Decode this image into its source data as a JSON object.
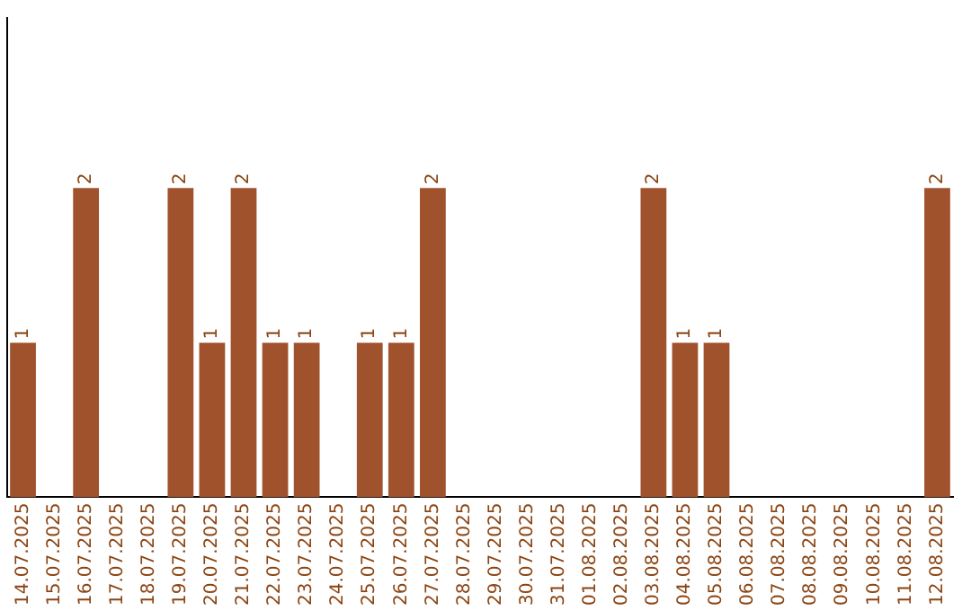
{
  "chart_data": {
    "type": "bar",
    "categories": [
      "14.07.2025",
      "15.07.2025",
      "16.07.2025",
      "17.07.2025",
      "18.07.2025",
      "19.07.2025",
      "20.07.2025",
      "21.07.2025",
      "22.07.2025",
      "23.07.2025",
      "24.07.2025",
      "25.07.2025",
      "26.07.2025",
      "27.07.2025",
      "28.07.2025",
      "29.07.2025",
      "30.07.2025",
      "31.07.2025",
      "01.08.2025",
      "02.08.2025",
      "03.08.2025",
      "04.08.2025",
      "05.08.2025",
      "06.08.2025",
      "07.08.2025",
      "08.08.2025",
      "09.08.2025",
      "10.08.2025",
      "11.08.2025",
      "12.08.2025"
    ],
    "values": [
      1,
      0,
      2,
      0,
      0,
      2,
      1,
      2,
      1,
      1,
      0,
      1,
      1,
      2,
      0,
      0,
      0,
      0,
      0,
      0,
      2,
      1,
      1,
      0,
      0,
      0,
      0,
      0,
      0,
      2
    ],
    "value_labels": [
      "1",
      null,
      "2",
      null,
      null,
      "2",
      "1",
      "2",
      "1",
      "1",
      null,
      "1",
      "1",
      "2",
      null,
      null,
      null,
      null,
      null,
      null,
      "2",
      "1",
      "1",
      null,
      null,
      null,
      null,
      null,
      null,
      "2"
    ],
    "color": "#a0522d",
    "ylim": [
      0,
      3.1
    ],
    "tick_labels": "x",
    "grid": false,
    "legend": false
  }
}
